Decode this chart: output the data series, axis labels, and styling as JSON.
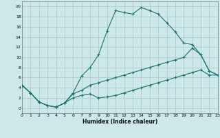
{
  "xlabel": "Humidex (Indice chaleur)",
  "bg_color": "#cce8e8",
  "grid_color": "#b0cccc",
  "line_color": "#1a7070",
  "xlim": [
    0,
    23
  ],
  "ylim": [
    -1,
    21
  ],
  "xticks": [
    0,
    1,
    2,
    3,
    4,
    5,
    6,
    7,
    8,
    9,
    10,
    11,
    12,
    13,
    14,
    15,
    16,
    17,
    18,
    19,
    20,
    21,
    22,
    23
  ],
  "yticks": [
    0,
    2,
    4,
    6,
    8,
    10,
    12,
    14,
    16,
    18,
    20
  ],
  "line1_x": [
    0,
    1,
    2,
    3,
    4,
    5,
    6,
    7,
    8,
    9,
    10,
    11,
    12,
    13,
    14,
    15,
    16,
    17,
    18,
    19,
    20,
    21,
    22,
    23
  ],
  "line1_y": [
    4.5,
    3.0,
    1.2,
    0.5,
    0.2,
    1.0,
    3.0,
    6.3,
    8.0,
    10.5,
    15.2,
    19.2,
    18.8,
    18.5,
    19.8,
    19.2,
    18.5,
    16.8,
    15.0,
    12.8,
    12.5,
    10.5,
    7.3,
    6.5
  ],
  "line2_x": [
    0,
    1,
    2,
    3,
    4,
    5,
    6,
    7,
    8,
    9,
    10,
    11,
    12,
    13,
    14,
    15,
    16,
    17,
    18,
    19,
    20,
    21,
    22,
    23
  ],
  "line2_y": [
    4.5,
    3.0,
    1.2,
    0.5,
    0.2,
    1.0,
    2.8,
    3.5,
    4.5,
    5.0,
    5.5,
    6.0,
    6.5,
    7.0,
    7.5,
    8.0,
    8.5,
    9.0,
    9.5,
    10.0,
    11.8,
    10.5,
    7.3,
    6.5
  ],
  "line3_x": [
    0,
    1,
    2,
    3,
    4,
    5,
    6,
    7,
    8,
    9,
    10,
    11,
    12,
    13,
    14,
    15,
    16,
    17,
    18,
    19,
    20,
    21,
    22,
    23
  ],
  "line3_y": [
    4.5,
    3.0,
    1.2,
    0.5,
    0.2,
    1.0,
    2.0,
    2.5,
    2.8,
    2.0,
    2.2,
    2.5,
    3.0,
    3.5,
    4.0,
    4.5,
    5.0,
    5.5,
    6.0,
    6.5,
    7.0,
    7.5,
    6.5,
    6.5
  ]
}
